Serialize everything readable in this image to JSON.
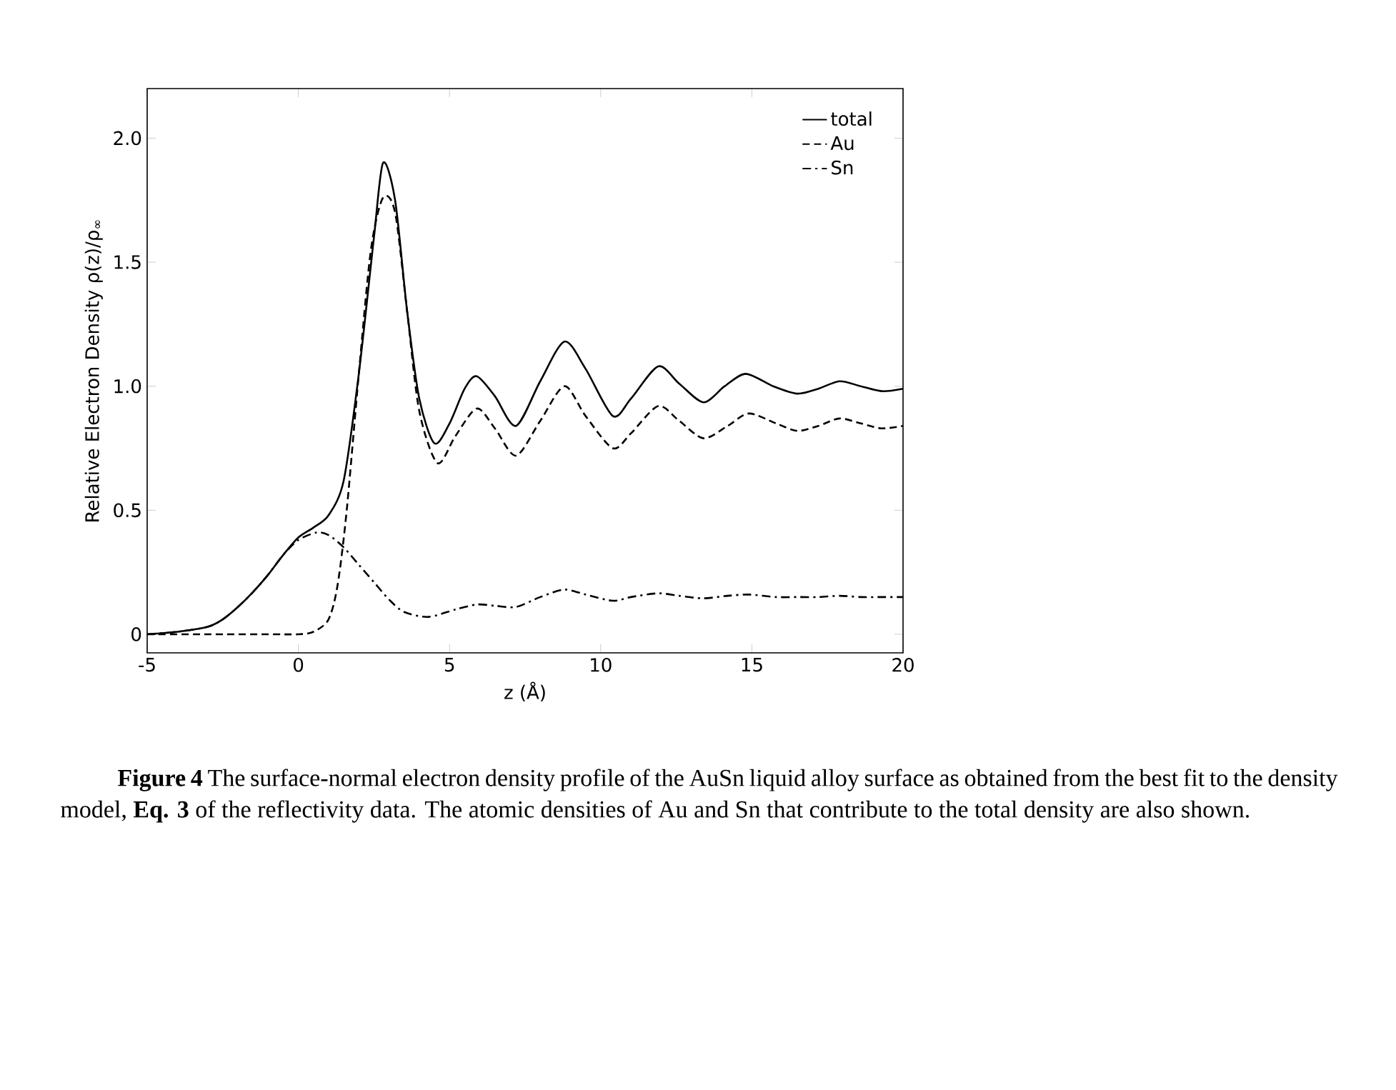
{
  "chart_data": {
    "type": "line",
    "xlabel": "z (Å)",
    "ylabel": "Relative Electron Density  ρ(z)/ρ$_{∞}$",
    "xlim": [
      -5,
      20
    ],
    "ylim": [
      -0.075,
      2.2
    ],
    "xticks": [
      -5,
      0,
      5,
      10,
      15,
      20
    ],
    "yticks": [
      {
        "value": 0,
        "label": "0"
      },
      0.5,
      {
        "value": 1,
        "label": "1.0"
      },
      1.5,
      {
        "value": 2,
        "label": "2.0"
      }
    ],
    "legend": "top right",
    "grid": false,
    "series": [
      {
        "name": "total",
        "color": "#000000",
        "line_style": "solid",
        "x": [
          -5,
          -4,
          -3,
          -2.5,
          -2,
          -1.5,
          -1,
          -0.5,
          0,
          0.5,
          1,
          1.5,
          2,
          2.5,
          2.8,
          3.2,
          3.6,
          4,
          4.5,
          5,
          5.5,
          5.9,
          6.5,
          7.2,
          8,
          8.8,
          9.5,
          10.4,
          11,
          11.9,
          12.6,
          13.4,
          14.1,
          14.8,
          15.7,
          16.5,
          17.2,
          17.9,
          18.6,
          19.3,
          20
        ],
        "values": [
          0,
          0.01,
          0.03,
          0.06,
          0.11,
          0.17,
          0.24,
          0.32,
          0.39,
          0.43,
          0.48,
          0.62,
          1.05,
          1.6,
          1.9,
          1.75,
          1.3,
          0.95,
          0.77,
          0.85,
          0.99,
          1.04,
          0.96,
          0.84,
          1.02,
          1.18,
          1.07,
          0.88,
          0.95,
          1.08,
          1.01,
          0.935,
          1.0,
          1.05,
          1.0,
          0.97,
          0.99,
          1.02,
          1.0,
          0.98,
          0.99
        ]
      },
      {
        "name": "Au",
        "color": "#000000",
        "line_style": "dashed",
        "x": [
          -5,
          -3,
          -1,
          0,
          0.5,
          1,
          1.3,
          1.6,
          2,
          2.4,
          2.8,
          3.2,
          3.6,
          4,
          4.6,
          5.2,
          5.9,
          6.5,
          7.2,
          8,
          8.8,
          9.5,
          10.4,
          11,
          11.9,
          12.6,
          13.4,
          14.2,
          14.9,
          15.8,
          16.5,
          17.2,
          17.9,
          18.6,
          19.3,
          20
        ],
        "values": [
          0,
          0,
          0,
          0,
          0.01,
          0.06,
          0.2,
          0.5,
          1.05,
          1.55,
          1.76,
          1.7,
          1.3,
          0.9,
          0.69,
          0.8,
          0.91,
          0.83,
          0.72,
          0.86,
          1.0,
          0.88,
          0.75,
          0.81,
          0.92,
          0.86,
          0.79,
          0.84,
          0.89,
          0.85,
          0.82,
          0.84,
          0.87,
          0.85,
          0.83,
          0.84
        ]
      },
      {
        "name": "Sn",
        "color": "#000000",
        "line_style": "dashdot",
        "x": [
          -5,
          -4,
          -3,
          -2.5,
          -2,
          -1.5,
          -1,
          -0.5,
          0,
          0.6,
          1,
          1.5,
          2,
          2.5,
          3,
          3.5,
          4.3,
          5.2,
          5.9,
          6.5,
          7.2,
          8,
          8.8,
          9.5,
          10.4,
          11,
          11.9,
          12.6,
          13.4,
          14.2,
          14.9,
          15.8,
          16.5,
          17.2,
          17.9,
          18.6,
          19.3,
          20
        ],
        "values": [
          0,
          0.01,
          0.03,
          0.06,
          0.11,
          0.17,
          0.24,
          0.32,
          0.38,
          0.41,
          0.4,
          0.35,
          0.28,
          0.21,
          0.14,
          0.09,
          0.07,
          0.1,
          0.12,
          0.115,
          0.11,
          0.15,
          0.18,
          0.16,
          0.135,
          0.15,
          0.165,
          0.155,
          0.145,
          0.155,
          0.16,
          0.15,
          0.15,
          0.15,
          0.155,
          0.15,
          0.15,
          0.15
        ]
      }
    ],
    "annotations": [
      "**Figure 4** The surface-normal electron density profile of the AuSn liquid alloy surface as obtained from the best fit to the density model, **Eq. 3** of the reflectivity data. The atomic densities of Au  and Sn  that contribute to the total density are also shown."
    ]
  }
}
